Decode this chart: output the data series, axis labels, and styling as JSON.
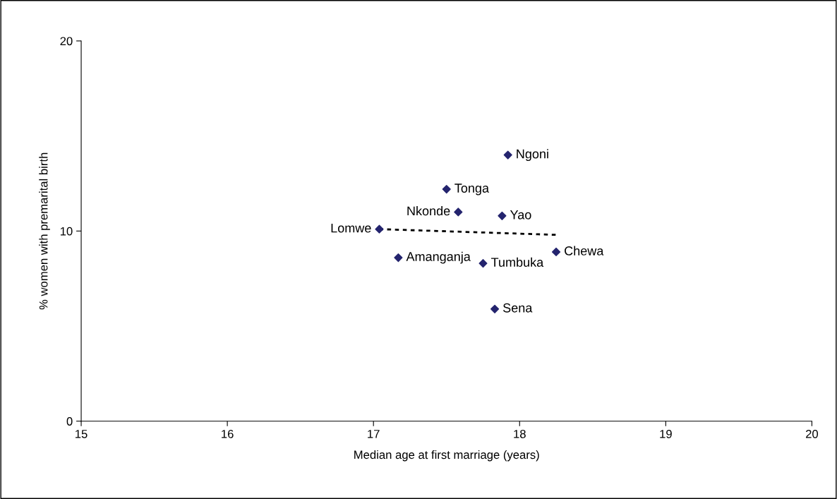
{
  "chart_data": {
    "type": "scatter",
    "xlabel": "Median age at first marriage (years)",
    "ylabel": "% women with premarital birth",
    "xlim": [
      15,
      20
    ],
    "ylim": [
      0,
      20
    ],
    "xticks": [
      15,
      16,
      17,
      18,
      19,
      20
    ],
    "yticks": [
      0,
      10,
      20
    ],
    "grid": false,
    "legend": false,
    "series": [
      {
        "marker": "diamond",
        "color": "#24246e",
        "x": [
          17.92,
          17.5,
          17.58,
          17.88,
          17.04,
          17.17,
          17.75,
          18.25,
          17.83
        ],
        "values": [
          14.0,
          12.2,
          11.0,
          10.8,
          10.1,
          8.6,
          8.3,
          8.9,
          5.9
        ]
      },
      {
        "type": "line",
        "marker": "none",
        "color": "#000000",
        "line_style": "dotted",
        "x": [
          17.04,
          18.25
        ],
        "values": [
          10.1,
          9.8
        ]
      }
    ],
    "annotations": [
      {
        "text": "Ngoni",
        "x": 17.92,
        "y": 14.0
      },
      {
        "text": "Tonga",
        "x": 17.5,
        "y": 12.2
      },
      {
        "text": "Nkonde",
        "x": 17.58,
        "y": 11.0
      },
      {
        "text": "Yao",
        "x": 17.88,
        "y": 10.8
      },
      {
        "text": "Lomwe",
        "x": 17.04,
        "y": 10.1
      },
      {
        "text": "Amanganja",
        "x": 17.17,
        "y": 8.6
      },
      {
        "text": "Tumbuka",
        "x": 17.75,
        "y": 8.3
      },
      {
        "text": "Chewa",
        "x": 18.25,
        "y": 8.9
      },
      {
        "text": "Sena",
        "x": 17.83,
        "y": 5.9
      }
    ]
  }
}
